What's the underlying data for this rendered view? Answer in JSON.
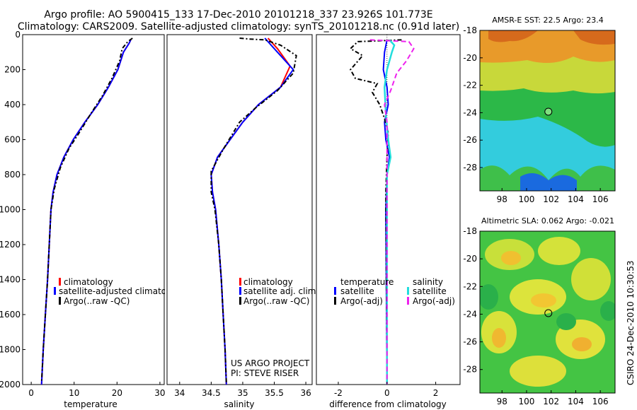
{
  "title_line1": "Argo profile: AO 5900415_133 17-Dec-2010 20101218_337 23.926S 101.773E",
  "title_line2": "Climatology: CARS2009. Satellite-adjusted climatology: synTS_20101218.nc (0.91d later)",
  "side_stamp": "CSIRO 24-Dec-2010 10:30:53",
  "project_line1": "US ARGO PROJECT",
  "project_line2": "PI: STEVE RISER",
  "colors": {
    "red": "#ff0000",
    "blue": "#0000ff",
    "black": "#000000",
    "cyan": "#22dddd",
    "magenta": "#ee22ee"
  },
  "chart_data": [
    {
      "type": "line",
      "xlabel": "temperature",
      "ylabel": "",
      "xlim": [
        -2,
        31
      ],
      "ylim": [
        2000,
        0
      ],
      "xticks": [
        "0",
        "10",
        "20",
        "30"
      ],
      "yticks": [
        "0",
        "200",
        "400",
        "600",
        "800",
        "1000",
        "1200",
        "1400",
        "1600",
        "1800",
        "2000"
      ],
      "legend": [
        "climatology",
        "satellite-adjusted climatology",
        "Argo(..raw -QC)"
      ],
      "series": [
        {
          "name": "climatology",
          "color": "red",
          "dash": false,
          "points": [
            [
              23.2,
              30
            ],
            [
              22.8,
              50
            ],
            [
              21.5,
              100
            ],
            [
              20.2,
              200
            ],
            [
              18,
              300
            ],
            [
              15.5,
              400
            ],
            [
              12.5,
              500
            ],
            [
              9.8,
              600
            ],
            [
              7.6,
              700
            ],
            [
              6,
              800
            ],
            [
              5.1,
              900
            ],
            [
              4.6,
              1000
            ],
            [
              4.2,
              1200
            ],
            [
              3.8,
              1400
            ],
            [
              3.3,
              1600
            ],
            [
              2.8,
              1800
            ],
            [
              2.4,
              2000
            ]
          ]
        },
        {
          "name": "satellite-adjusted climatology",
          "color": "blue",
          "dash": false,
          "points": [
            [
              23.2,
              30
            ],
            [
              22.8,
              50
            ],
            [
              21.5,
              100
            ],
            [
              20.2,
              200
            ],
            [
              18,
              300
            ],
            [
              15.5,
              400
            ],
            [
              12.5,
              500
            ],
            [
              9.8,
              600
            ],
            [
              7.6,
              700
            ],
            [
              6,
              800
            ],
            [
              5.1,
              900
            ],
            [
              4.6,
              1000
            ],
            [
              4.2,
              1200
            ],
            [
              3.8,
              1400
            ],
            [
              3.3,
              1600
            ],
            [
              2.8,
              1800
            ],
            [
              2.4,
              2000
            ]
          ]
        },
        {
          "name": "Argo(..raw -QC)",
          "color": "black",
          "dash": true,
          "points": [
            [
              23.6,
              20
            ],
            [
              22.5,
              40
            ],
            [
              21.2,
              80
            ],
            [
              20.6,
              150
            ],
            [
              18.8,
              250
            ],
            [
              16.6,
              350
            ],
            [
              14.2,
              440
            ],
            [
              11.2,
              560
            ],
            [
              8.8,
              650
            ],
            [
              6.8,
              760
            ],
            [
              5.4,
              880
            ],
            [
              4.6,
              1000
            ],
            [
              4.2,
              1200
            ],
            [
              3.8,
              1400
            ],
            [
              3.3,
              1600
            ],
            [
              2.8,
              1800
            ],
            [
              2.4,
              1990
            ]
          ]
        }
      ]
    },
    {
      "type": "line",
      "xlabel": "salinity",
      "ylabel": "",
      "xlim": [
        33.8,
        36.1
      ],
      "ylim": [
        2000,
        0
      ],
      "xticks": [
        "34",
        "34.5",
        "35",
        "35.5",
        "36"
      ],
      "yticks": [],
      "legend": [
        "climatology",
        "satellite adj. clim.",
        "Argo(..raw -QC)"
      ],
      "series": [
        {
          "name": "climatology",
          "color": "red",
          "dash": false,
          "points": [
            [
              35.4,
              20
            ],
            [
              35.55,
              80
            ],
            [
              35.75,
              180
            ],
            [
              35.6,
              300
            ],
            [
              35.25,
              400
            ],
            [
              35.0,
              500
            ],
            [
              34.8,
              600
            ],
            [
              34.6,
              700
            ],
            [
              34.5,
              800
            ],
            [
              34.52,
              900
            ],
            [
              34.57,
              1000
            ],
            [
              34.62,
              1200
            ],
            [
              34.66,
              1400
            ],
            [
              34.69,
              1600
            ],
            [
              34.72,
              1800
            ],
            [
              34.74,
              2000
            ]
          ]
        },
        {
          "name": "satellite adj. clim.",
          "color": "blue",
          "dash": false,
          "points": [
            [
              35.35,
              20
            ],
            [
              35.5,
              80
            ],
            [
              35.8,
              200
            ],
            [
              35.6,
              300
            ],
            [
              35.25,
              400
            ],
            [
              35.0,
              500
            ],
            [
              34.8,
              600
            ],
            [
              34.6,
              700
            ],
            [
              34.5,
              800
            ],
            [
              34.52,
              900
            ],
            [
              34.57,
              1000
            ],
            [
              34.62,
              1200
            ],
            [
              34.66,
              1400
            ],
            [
              34.69,
              1600
            ],
            [
              34.72,
              1800
            ],
            [
              34.74,
              2000
            ]
          ]
        },
        {
          "name": "Argo(..raw -QC)",
          "color": "black",
          "dash": true,
          "points": [
            [
              34.95,
              20
            ],
            [
              35.1,
              25
            ],
            [
              35.35,
              30
            ],
            [
              35.6,
              60
            ],
            [
              35.85,
              120
            ],
            [
              35.8,
              220
            ],
            [
              35.55,
              320
            ],
            [
              35.2,
              420
            ],
            [
              34.95,
              500
            ],
            [
              34.7,
              650
            ],
            [
              34.5,
              780
            ],
            [
              34.5,
              900
            ],
            [
              34.56,
              1000
            ],
            [
              34.62,
              1200
            ],
            [
              34.66,
              1400
            ],
            [
              34.69,
              1600
            ],
            [
              34.72,
              1800
            ],
            [
              34.74,
              1990
            ]
          ]
        }
      ]
    },
    {
      "type": "line",
      "xlabel": "difference from climatology",
      "ylabel": "",
      "xlim": [
        -2.9,
        3.0
      ],
      "ylim": [
        2000,
        0
      ],
      "xticks": [
        "-2",
        "0",
        "2"
      ],
      "yticks": [],
      "legend_groups": [
        {
          "heading": "temperature",
          "items": [
            "satellite",
            "Argo(-adj)"
          ]
        },
        {
          "heading": "salinity",
          "items": [
            "satellite",
            "Argo(-adj)"
          ]
        }
      ],
      "series": [
        {
          "name": "temperature satellite",
          "color": "blue",
          "dash": false,
          "points": [
            [
              0,
              30
            ],
            [
              -0.1,
              100
            ],
            [
              -0.15,
              200
            ],
            [
              0,
              300
            ],
            [
              0.05,
              400
            ],
            [
              -0.1,
              500
            ],
            [
              -0.05,
              600
            ],
            [
              0.1,
              700
            ],
            [
              0,
              800
            ],
            [
              -0.05,
              1000
            ],
            [
              0,
              2000
            ]
          ]
        },
        {
          "name": "temperature Argo(-adj)",
          "color": "black",
          "dash": true,
          "points": [
            [
              0.6,
              30
            ],
            [
              -1.2,
              40
            ],
            [
              -1.5,
              80
            ],
            [
              -1.0,
              120
            ],
            [
              -1.5,
              200
            ],
            [
              -1.3,
              250
            ],
            [
              -0.4,
              280
            ],
            [
              -0.6,
              330
            ],
            [
              -0.3,
              400
            ],
            [
              -0.1,
              480
            ],
            [
              0.05,
              560
            ],
            [
              0,
              700
            ],
            [
              -0.05,
              900
            ],
            [
              0,
              2000
            ]
          ]
        },
        {
          "name": "salinity satellite",
          "color": "cyan",
          "dash": false,
          "points": [
            [
              0.1,
              30
            ],
            [
              0.3,
              60
            ],
            [
              0.2,
              100
            ],
            [
              0,
              200
            ],
            [
              -0.1,
              300
            ],
            [
              -0.05,
              450
            ],
            [
              0.05,
              600
            ],
            [
              0.15,
              700
            ],
            [
              0,
              800
            ],
            [
              0,
              2000
            ]
          ]
        },
        {
          "name": "salinity Argo(-adj)",
          "color": "magenta",
          "dash": true,
          "points": [
            [
              -0.7,
              30
            ],
            [
              0.9,
              40
            ],
            [
              1.1,
              80
            ],
            [
              0.8,
              150
            ],
            [
              0.4,
              220
            ],
            [
              0.15,
              320
            ],
            [
              -0.1,
              400
            ],
            [
              0,
              500
            ],
            [
              0,
              2000
            ]
          ]
        }
      ]
    },
    {
      "type": "heatmap",
      "title": "AMSR-E SST: 22.5  Argo: 23.4",
      "xlim": [
        96.2,
        107.2
      ],
      "ylim": [
        -29.7,
        -18
      ],
      "xticks": [
        "98",
        "100",
        "102",
        "104",
        "106"
      ],
      "yticks": [
        "-18",
        "-20",
        "-22",
        "-24",
        "-26",
        "-28"
      ],
      "marker": {
        "lon": 101.773,
        "lat": -23.926
      }
    },
    {
      "type": "heatmap",
      "title": "Altimetric SLA: 0.062  Argo: -0.021",
      "xlim": [
        96.2,
        107.2
      ],
      "ylim": [
        -29.7,
        -18
      ],
      "xticks": [
        "98",
        "100",
        "102",
        "104",
        "106"
      ],
      "yticks": [
        "-18",
        "-20",
        "-22",
        "-24",
        "-26",
        "-28"
      ],
      "marker": {
        "lon": 101.773,
        "lat": -23.926
      }
    }
  ]
}
